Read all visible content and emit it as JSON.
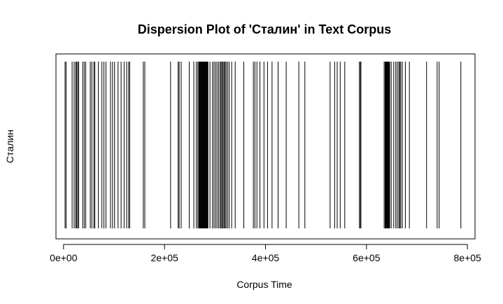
{
  "chart_data": {
    "type": "dispersion",
    "title": "Dispersion Plot of 'Сталин' in Text Corpus",
    "xlabel": "Corpus Time",
    "ylabel": "Сталин",
    "xlim": [
      -15000,
      815000
    ],
    "x_ticks": [
      {
        "value": 0,
        "label": "0e+00"
      },
      {
        "value": 200000,
        "label": "2e+05"
      },
      {
        "value": 400000,
        "label": "4e+05"
      },
      {
        "value": 600000,
        "label": "6e+05"
      },
      {
        "value": 800000,
        "label": "8e+05"
      }
    ],
    "grid": false,
    "legend": "none",
    "mark_color": "#000000",
    "occurrences": [
      3000,
      5000,
      17000,
      21000,
      24000,
      26000,
      28000,
      30000,
      38000,
      41000,
      44000,
      53000,
      56000,
      60000,
      62000,
      69000,
      76000,
      80000,
      84000,
      93000,
      97000,
      101000,
      108000,
      114000,
      120000,
      125000,
      129000,
      131000,
      158000,
      161000,
      212000,
      227000,
      229000,
      233000,
      249000,
      258000,
      263000,
      266000,
      268000,
      269000,
      270000,
      271000,
      272000,
      273000,
      274000,
      275000,
      276000,
      277000,
      278000,
      279000,
      280000,
      281000,
      282000,
      283000,
      284000,
      285000,
      286000,
      290000,
      295000,
      298000,
      301000,
      304000,
      307000,
      310000,
      312000,
      314000,
      316000,
      318000,
      320000,
      322000,
      325000,
      328000,
      333000,
      340000,
      357000,
      376000,
      379000,
      383000,
      389000,
      397000,
      404000,
      413000,
      425000,
      441000,
      466000,
      478000,
      528000,
      537000,
      542000,
      548000,
      557000,
      586000,
      588000,
      589000,
      635000,
      637000,
      638000,
      639000,
      640000,
      641000,
      642000,
      643000,
      644000,
      645000,
      646000,
      649000,
      654000,
      658000,
      661000,
      664000,
      666000,
      668000,
      671000,
      677000,
      685000,
      719000,
      740000,
      744000,
      787000
    ]
  }
}
